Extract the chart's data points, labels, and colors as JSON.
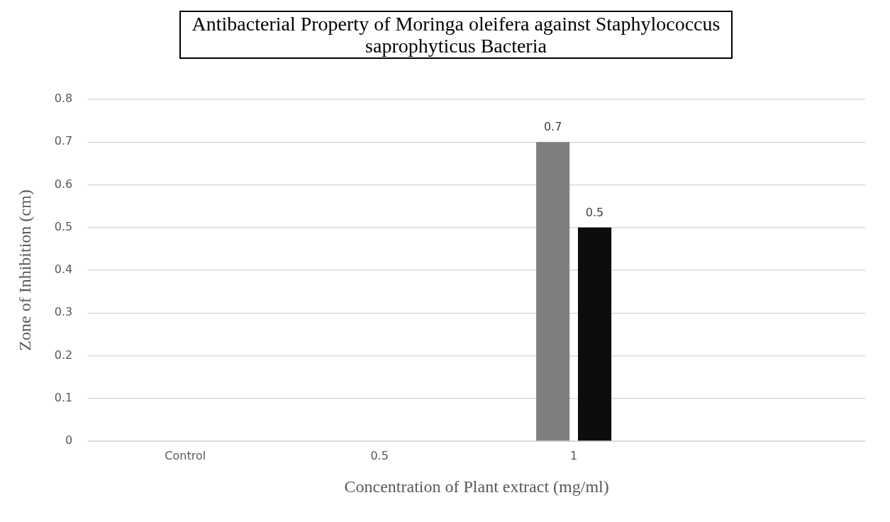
{
  "chart_data": {
    "type": "bar",
    "title": "Antibacterial Property of Moringa oleifera against Staphylococcus saprophyticus Bacteria",
    "xlabel": "Concentration of Plant extract (mg/ml)",
    "ylabel": "Zone of Inhibition (cm)",
    "categories": [
      "Control",
      "0.5",
      "1",
      null
    ],
    "series": [
      {
        "color": "#7f7f7f",
        "values": [
          0,
          0,
          0.7,
          0
        ],
        "value_labels": [
          null,
          null,
          "0.7",
          null
        ]
      },
      {
        "color": "#0d0d0d",
        "values": [
          0,
          0,
          0.5,
          0
        ],
        "value_labels": [
          null,
          null,
          "0.5",
          null
        ]
      }
    ],
    "ylim": [
      0,
      0.8
    ],
    "yticks": [
      0,
      0.1,
      0.2,
      0.3,
      0.4,
      0.5,
      0.6,
      0.7,
      0.8
    ],
    "grid": "y",
    "legend": false
  }
}
